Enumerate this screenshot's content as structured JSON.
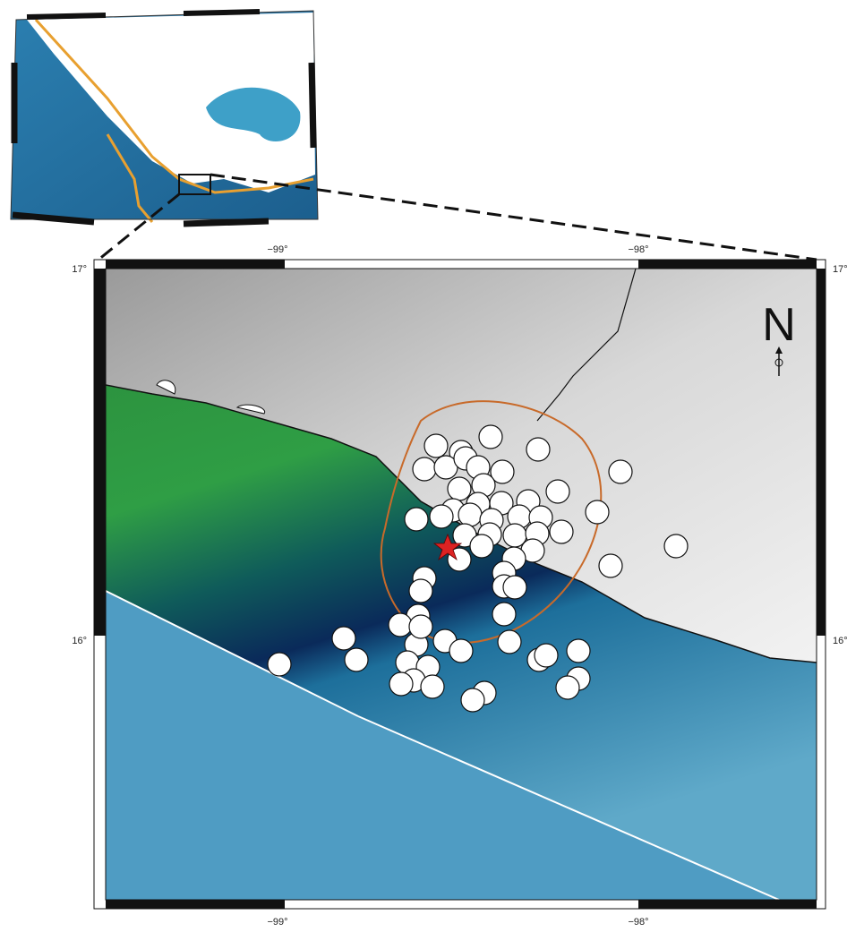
{
  "map": {
    "lon_labels": [
      "−99°",
      "−98°"
    ],
    "lat_labels": [
      "17°",
      "16°"
    ],
    "north_label": "N"
  }
}
